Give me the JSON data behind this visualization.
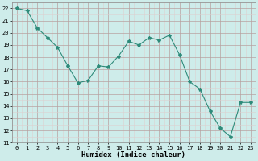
{
  "x": [
    0,
    1,
    2,
    3,
    4,
    5,
    6,
    7,
    8,
    9,
    10,
    11,
    12,
    13,
    14,
    15,
    16,
    17,
    18,
    19,
    20,
    21,
    22,
    23
  ],
  "y": [
    22.0,
    21.8,
    20.4,
    19.6,
    18.8,
    17.3,
    15.9,
    16.1,
    17.3,
    17.2,
    18.1,
    19.3,
    19.0,
    19.6,
    19.4,
    19.8,
    18.2,
    16.0,
    15.4,
    13.6,
    12.2,
    11.5,
    14.3,
    14.3
  ],
  "line_color": "#2e8b7a",
  "marker": "*",
  "marker_size": 3,
  "bg_color": "#ceecea",
  "grid_major_color": "#b8a0a0",
  "grid_minor_color": "#ddd0d0",
  "xlabel": "Humidex (Indice chaleur)",
  "xlim": [
    -0.5,
    23.5
  ],
  "ylim": [
    11,
    22.5
  ],
  "yticks": [
    11,
    12,
    13,
    14,
    15,
    16,
    17,
    18,
    19,
    20,
    21,
    22
  ],
  "xticks": [
    0,
    1,
    2,
    3,
    4,
    5,
    6,
    7,
    8,
    9,
    10,
    11,
    12,
    13,
    14,
    15,
    16,
    17,
    18,
    19,
    20,
    21,
    22,
    23
  ],
  "tick_fontsize": 5,
  "xlabel_fontsize": 6.5
}
